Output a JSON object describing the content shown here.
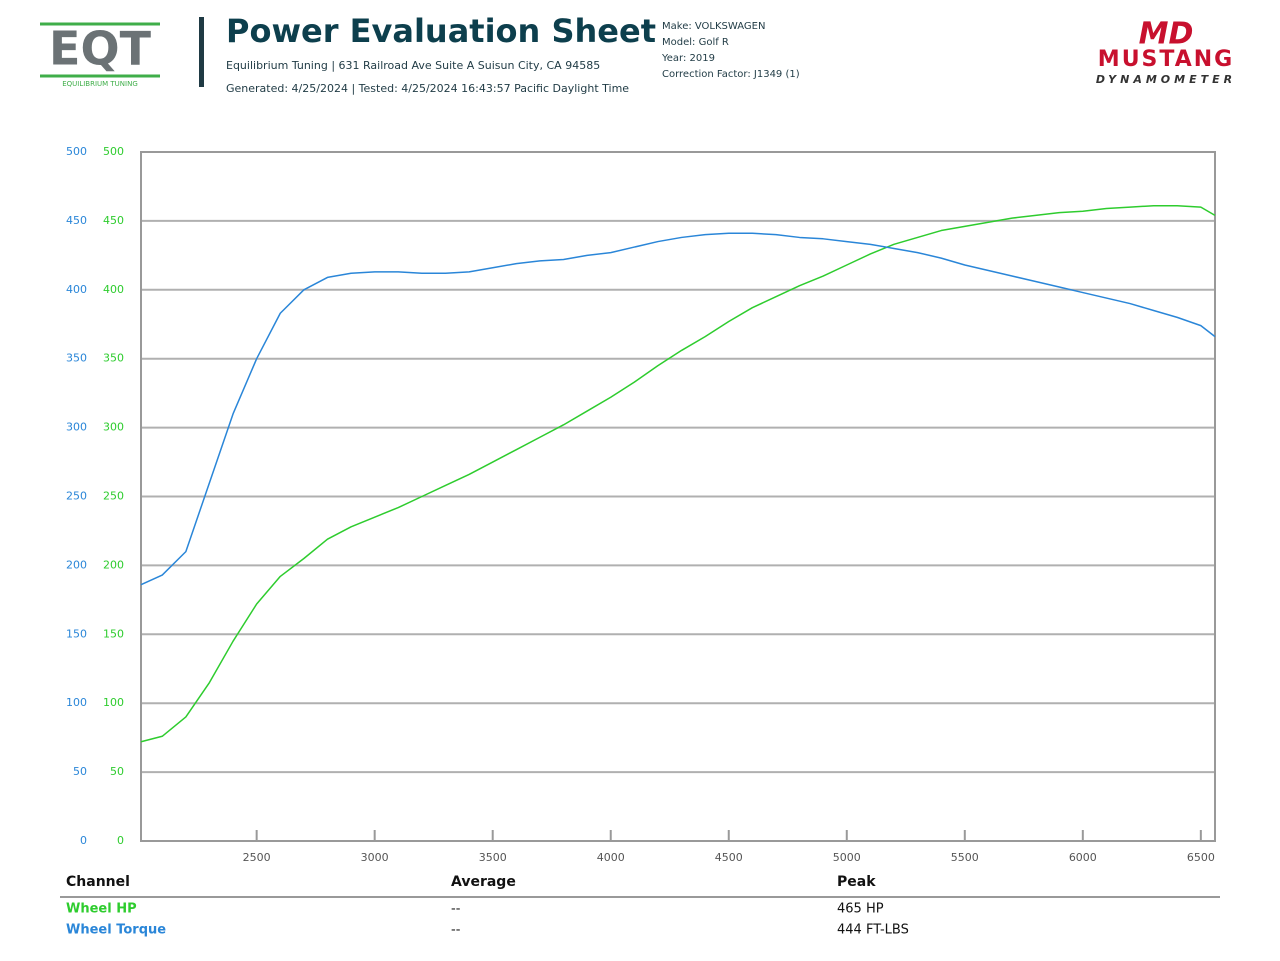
{
  "header": {
    "logo_left": {
      "mark": "EQT",
      "sub": "EQUILIBRIUM TUNING"
    },
    "title": "Power Evaluation Sheet",
    "address": "Equilibrium Tuning | 631 Railroad Ave Suite A Suisun City, CA 94585",
    "generated": "Generated: 4/25/2024 | Tested: 4/25/2024 16:43:57 Pacific Daylight Time",
    "make": "Make: VOLKSWAGEN",
    "model": "Model: Golf R",
    "year": "Year: 2019",
    "correction": "Correction Factor: J1349 (1)",
    "logo_right": {
      "mark": "MD",
      "name": "MUSTANG",
      "sub": "DYNAMOMETER"
    }
  },
  "chart_data": {
    "type": "line",
    "x": [
      2010,
      2100,
      2200,
      2300,
      2400,
      2500,
      2600,
      2700,
      2800,
      2900,
      3000,
      3100,
      3200,
      3300,
      3400,
      3500,
      3600,
      3700,
      3800,
      3900,
      4000,
      4100,
      4200,
      4300,
      4400,
      4500,
      4600,
      4700,
      4800,
      4900,
      5000,
      5100,
      5200,
      5300,
      5400,
      5500,
      5600,
      5700,
      5800,
      5900,
      6000,
      6100,
      6200,
      6300,
      6400,
      6500,
      6560
    ],
    "series": [
      {
        "name": "Wheel HP",
        "color": "#2ecc2e",
        "axis": "y2",
        "values": [
          72,
          76,
          90,
          115,
          145,
          172,
          192,
          205,
          219,
          228,
          235,
          242,
          250,
          258,
          266,
          275,
          284,
          293,
          302,
          312,
          322,
          333,
          345,
          356,
          366,
          377,
          387,
          395,
          403,
          410,
          418,
          426,
          433,
          438,
          443,
          446,
          449,
          452,
          454,
          456,
          457,
          459,
          460,
          461,
          461,
          460,
          454
        ]
      },
      {
        "name": "Wheel Torque",
        "color": "#2a86d8",
        "values": [
          186,
          193,
          210,
          260,
          310,
          350,
          383,
          400,
          409,
          412,
          413,
          413,
          412,
          412,
          413,
          416,
          419,
          421,
          422,
          425,
          427,
          431,
          435,
          438,
          440,
          441,
          441,
          440,
          438,
          437,
          435,
          433,
          430,
          427,
          423,
          418,
          414,
          410,
          406,
          402,
          398,
          394,
          390,
          385,
          380,
          374,
          366
        ]
      }
    ],
    "xlim": [
      2010,
      6560
    ],
    "xticks": [
      2500,
      3000,
      3500,
      4000,
      4500,
      5000,
      5500,
      6000,
      6500
    ],
    "ylim": [
      0,
      500
    ],
    "yticks": [
      0,
      50,
      100,
      150,
      200,
      250,
      300,
      350,
      400,
      450,
      500
    ],
    "y2lim": [
      0,
      500
    ],
    "y2ticks": [
      0,
      50,
      100,
      150,
      200,
      250,
      300,
      350,
      400,
      450,
      500
    ],
    "grid": true
  },
  "table": {
    "columns": [
      "Channel",
      "Average",
      "Peak"
    ],
    "rows": [
      [
        "Wheel HP",
        "--",
        "465 HP"
      ],
      [
        "Wheel Torque",
        "--",
        "444 FT-LBS"
      ]
    ]
  }
}
